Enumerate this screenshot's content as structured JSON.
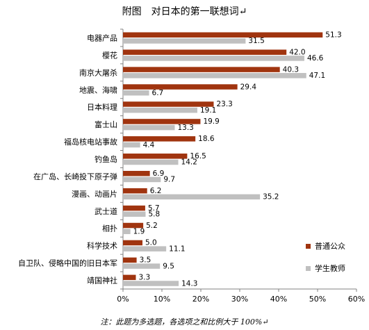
{
  "chart_data": {
    "type": "bar",
    "orientation": "horizontal",
    "title": "附图　对日本的第一联想词↵",
    "categories": [
      "电器产品",
      "樱花",
      "南京大屠杀",
      "地震、海啸",
      "日本料理",
      "富士山",
      "福岛核电站事故",
      "钓鱼岛",
      "在广岛、长崎投下原子弹",
      "漫画、动画片",
      "武士道",
      "相扑",
      "科学技术",
      "自卫队、侵略中国的旧日本军",
      "靖国神社"
    ],
    "series": [
      {
        "name": "普通公众",
        "color": "#a0340f",
        "values": [
          51.3,
          42.0,
          40.3,
          29.4,
          23.3,
          19.9,
          18.6,
          16.5,
          6.9,
          6.2,
          5.7,
          5.2,
          5.0,
          3.5,
          3.3
        ]
      },
      {
        "name": "学生教师",
        "color": "#c0c0c0",
        "values": [
          31.5,
          46.6,
          47.1,
          6.7,
          19.1,
          13.3,
          4.4,
          14.2,
          9.7,
          35.2,
          5.8,
          1.9,
          11.1,
          9.5,
          14.3
        ]
      }
    ],
    "xlim": [
      0,
      60
    ],
    "xticks": [
      "0%",
      "10%",
      "20%",
      "30%",
      "40%",
      "50%",
      "60%"
    ],
    "legend_position": "right",
    "note": "注：此题为多选题，各选项之和比例大于 100%↵"
  }
}
